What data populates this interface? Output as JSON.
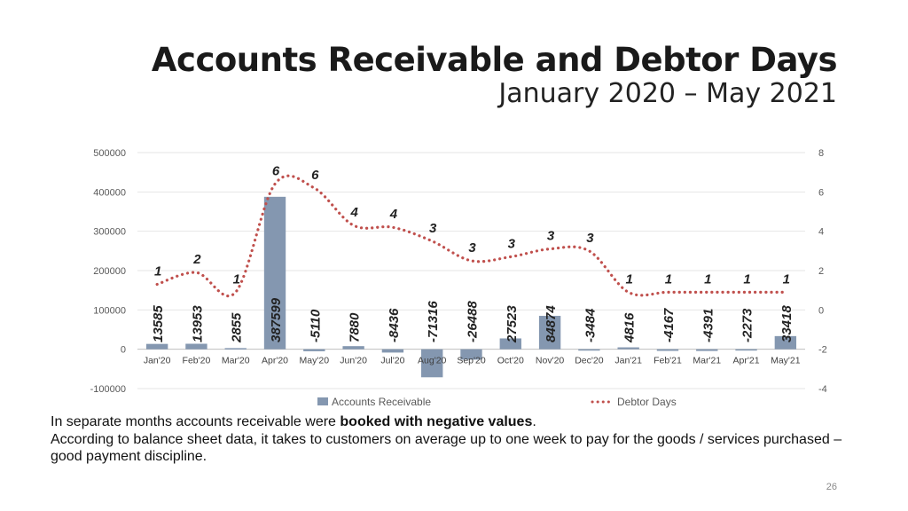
{
  "slide": {
    "title": "Accounts Receivable and Debtor Days",
    "subtitle": "January 2020 – May 2021",
    "note_line1_plain": "In separate months accounts receivable were ",
    "note_line1_bold": "booked with negative values",
    "note_line1_end": ".",
    "note_line2": "According to balance sheet data, it takes to customers on average up to one week to pay for the goods / services purchased – good payment discipline.",
    "page_number": "26"
  },
  "chart_data": {
    "type": "bar+line",
    "categories": [
      "Jan'20",
      "Feb'20",
      "Mar'20",
      "Apr'20",
      "May'20",
      "Jun'20",
      "Jul'20",
      "Aug'20",
      "Sep'20",
      "Oct'20",
      "Nov'20",
      "Dec'20",
      "Jan'21",
      "Feb'21",
      "Mar'21",
      "Apr'21",
      "May'21"
    ],
    "series": [
      {
        "name": "Accounts Receivable",
        "kind": "bar",
        "axis": "left",
        "color": "#8497b0",
        "values": [
          13585,
          13953,
          2855,
          387599,
          -5110,
          7880,
          -8436,
          -71316,
          -26488,
          27523,
          84874,
          -3484,
          4816,
          -4167,
          -4391,
          -2273,
          33418
        ]
      },
      {
        "name": "Debtor Days",
        "kind": "line",
        "axis": "right",
        "color": "#c0504d",
        "values": [
          1.3,
          1.9,
          0.9,
          6.4,
          6.2,
          4.3,
          4.2,
          3.5,
          2.5,
          2.7,
          3.1,
          3.0,
          0.9,
          0.9,
          0.9,
          0.9,
          0.9
        ],
        "labels": [
          "1",
          "2",
          "1",
          "6",
          "6",
          "4",
          "4",
          "3",
          "3",
          "3",
          "3",
          "3",
          "1",
          "1",
          "1",
          "1",
          "1"
        ]
      }
    ],
    "left_axis": {
      "ylim": [
        -100000,
        500000
      ],
      "ticks": [
        "500000",
        "400000",
        "300000",
        "200000",
        "100000",
        "0",
        "-100000"
      ]
    },
    "right_axis": {
      "ylim": [
        -4,
        8
      ],
      "ticks": [
        "8",
        "6",
        "4",
        "2",
        "0",
        "-2",
        "-4"
      ]
    },
    "legend": {
      "position": "bottom",
      "items": [
        "Accounts Receivable",
        "Debtor Days"
      ]
    },
    "grid": true
  }
}
